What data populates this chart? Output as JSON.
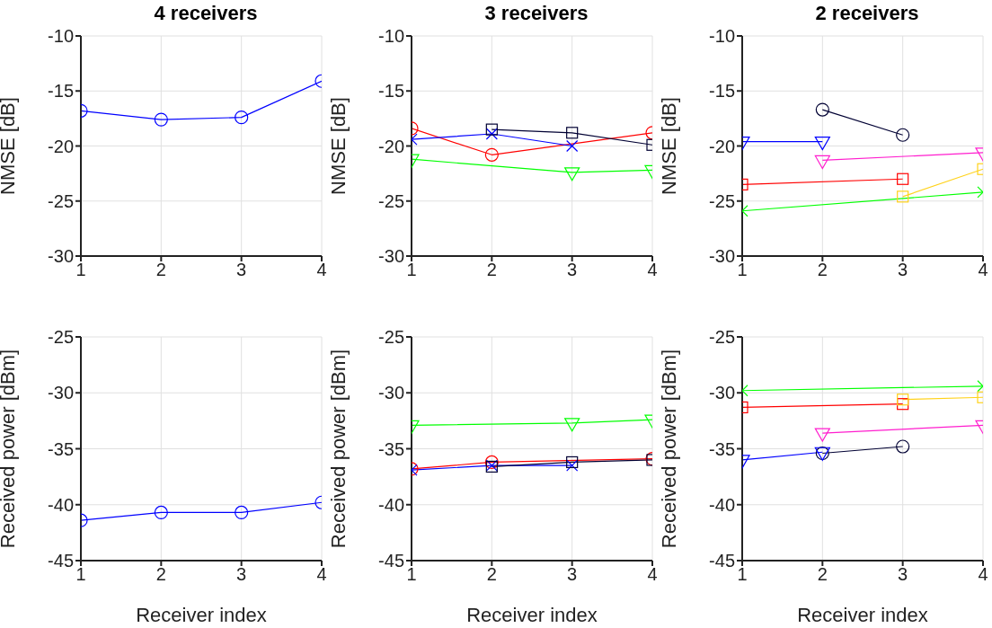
{
  "chart_data": [
    {
      "type": "line",
      "title": "4 receivers",
      "ylabel": "NMSE [dB]",
      "x": [
        1,
        2,
        3,
        4
      ],
      "xlim": [
        1,
        4
      ],
      "xticks": [
        1,
        2,
        3,
        4
      ],
      "ylim": [
        -30,
        -10
      ],
      "yticks": [
        -30,
        -25,
        -20,
        -15,
        -10
      ],
      "grid": true,
      "legend": false,
      "series": [
        {
          "color": "#0000ff",
          "marker": "circle",
          "values": [
            -16.8,
            -17.6,
            -17.4,
            -14.1
          ]
        }
      ]
    },
    {
      "type": "line",
      "title": "3 receivers",
      "ylabel": "NMSE [dB]",
      "x": [
        1,
        2,
        3,
        4
      ],
      "xlim": [
        1,
        4
      ],
      "xticks": [
        1,
        2,
        3,
        4
      ],
      "ylim": [
        -30,
        -10
      ],
      "yticks": [
        -30,
        -25,
        -20,
        -15,
        -10
      ],
      "grid": true,
      "legend": false,
      "series": [
        {
          "color": "#ff0000",
          "marker": "circle",
          "values": [
            -18.4,
            -20.8,
            null,
            -18.8
          ]
        },
        {
          "color": "#0000ff",
          "marker": "cross",
          "values": [
            -19.4,
            -18.9,
            -20.0,
            null
          ]
        },
        {
          "color": "#000033",
          "marker": "square",
          "values": [
            null,
            -18.5,
            -18.8,
            -19.9
          ]
        },
        {
          "color": "#00ff00",
          "marker": "triangle",
          "values": [
            -21.2,
            null,
            -22.4,
            -22.2
          ]
        }
      ]
    },
    {
      "type": "line",
      "title": "2 receivers",
      "ylabel": "NMSE [dB]",
      "x": [
        1,
        2,
        3,
        4
      ],
      "xlim": [
        1,
        4
      ],
      "xticks": [
        1,
        2,
        3,
        4
      ],
      "ylim": [
        -30,
        -10
      ],
      "yticks": [
        -30,
        -25,
        -20,
        -15,
        -10
      ],
      "grid": true,
      "legend": false,
      "series": [
        {
          "color": "#000033",
          "marker": "circle",
          "values": [
            null,
            -16.7,
            -19.0,
            null
          ]
        },
        {
          "color": "#0000ff",
          "marker": "triangle",
          "values": [
            -19.6,
            -19.6,
            null,
            null
          ]
        },
        {
          "color": "#ff1dce",
          "marker": "triangle",
          "values": [
            null,
            -21.3,
            null,
            -20.6
          ]
        },
        {
          "color": "#ff0000",
          "marker": "square",
          "values": [
            -23.5,
            null,
            -23.0,
            null
          ]
        },
        {
          "color": "#ffd21a",
          "marker": "square",
          "values": [
            null,
            null,
            -24.6,
            -22.1
          ]
        },
        {
          "color": "#00ff00",
          "marker": "cross",
          "values": [
            -25.9,
            null,
            null,
            -24.2
          ]
        }
      ]
    },
    {
      "type": "line",
      "xlabel": "Receiver index",
      "ylabel": "Received power [dBm]",
      "x": [
        1,
        2,
        3,
        4
      ],
      "xlim": [
        1,
        4
      ],
      "xticks": [
        1,
        2,
        3,
        4
      ],
      "ylim": [
        -45,
        -25
      ],
      "yticks": [
        -45,
        -40,
        -35,
        -30,
        -25
      ],
      "grid": true,
      "legend": false,
      "series": [
        {
          "color": "#0000ff",
          "marker": "circle",
          "values": [
            -41.4,
            -40.7,
            -40.7,
            -39.8
          ]
        }
      ]
    },
    {
      "type": "line",
      "xlabel": "Receiver index",
      "ylabel": "Received power [dBm]",
      "x": [
        1,
        2,
        3,
        4
      ],
      "xlim": [
        1,
        4
      ],
      "xticks": [
        1,
        2,
        3,
        4
      ],
      "ylim": [
        -45,
        -25
      ],
      "yticks": [
        -45,
        -40,
        -35,
        -30,
        -25
      ],
      "grid": true,
      "legend": false,
      "series": [
        {
          "color": "#00ff00",
          "marker": "triangle",
          "values": [
            -32.9,
            null,
            -32.7,
            -32.4
          ]
        },
        {
          "color": "#ff0000",
          "marker": "circle",
          "values": [
            -36.8,
            -36.2,
            null,
            -35.9
          ]
        },
        {
          "color": "#0000ff",
          "marker": "cross",
          "values": [
            -36.9,
            -36.5,
            -36.5,
            null
          ]
        },
        {
          "color": "#000033",
          "marker": "square",
          "values": [
            null,
            -36.6,
            -36.2,
            -36.0
          ]
        }
      ]
    },
    {
      "type": "line",
      "xlabel": "Receiver index",
      "ylabel": "Received power [dBm]",
      "x": [
        1,
        2,
        3,
        4
      ],
      "xlim": [
        1,
        4
      ],
      "xticks": [
        1,
        2,
        3,
        4
      ],
      "ylim": [
        -45,
        -25
      ],
      "yticks": [
        -45,
        -40,
        -35,
        -30,
        -25
      ],
      "grid": true,
      "legend": false,
      "series": [
        {
          "color": "#00ff00",
          "marker": "cross",
          "values": [
            -29.8,
            null,
            null,
            -29.4
          ]
        },
        {
          "color": "#ff0000",
          "marker": "square",
          "values": [
            -31.3,
            null,
            -31.0,
            null
          ]
        },
        {
          "color": "#ffd21a",
          "marker": "square",
          "values": [
            null,
            null,
            -30.6,
            -30.4
          ]
        },
        {
          "color": "#ff1dce",
          "marker": "triangle",
          "values": [
            null,
            -33.6,
            null,
            -32.9
          ]
        },
        {
          "color": "#000033",
          "marker": "circle",
          "values": [
            null,
            -35.4,
            -34.8,
            null
          ]
        },
        {
          "color": "#0000ff",
          "marker": "triangle",
          "values": [
            -36.0,
            -35.3,
            null,
            null
          ]
        }
      ]
    }
  ]
}
